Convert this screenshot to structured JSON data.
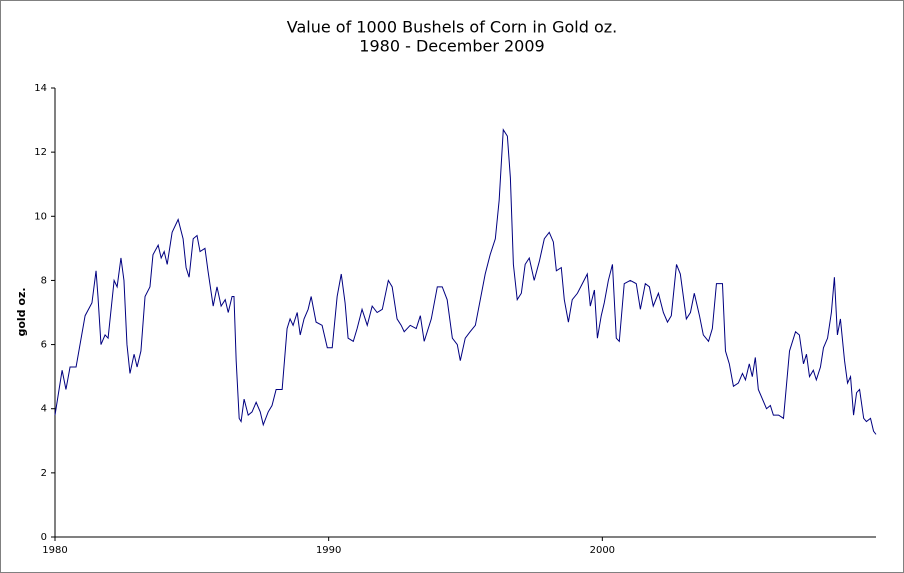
{
  "chart_data": {
    "type": "line",
    "title": "Value of 1000 Bushels of Corn in Gold oz.",
    "subtitle": "1980 - December 2009",
    "y_label": "gold oz.",
    "xlim": [
      1980,
      2010
    ],
    "xticks": [
      1980,
      1990,
      2000
    ],
    "ylim": [
      0,
      14
    ],
    "yticks": [
      0,
      2,
      4,
      6,
      8,
      10,
      12,
      14
    ],
    "grid": false,
    "series": [
      {
        "name": "Corn in Gold",
        "color": "#000080",
        "x": [
          1980.0,
          1980.26,
          1980.4,
          1980.55,
          1980.77,
          1981.1,
          1981.35,
          1981.5,
          1981.57,
          1981.68,
          1981.83,
          1981.94,
          1982.16,
          1982.27,
          1982.41,
          1982.52,
          1982.63,
          1982.74,
          1982.89,
          1983.0,
          1983.14,
          1983.29,
          1983.47,
          1983.58,
          1983.77,
          1983.88,
          1983.99,
          1984.1,
          1984.28,
          1984.5,
          1984.68,
          1984.79,
          1984.9,
          1985.05,
          1985.19,
          1985.3,
          1985.48,
          1985.59,
          1985.78,
          1985.92,
          1986.07,
          1986.22,
          1986.33,
          1986.47,
          1986.54,
          1986.62,
          1986.73,
          1986.8,
          1986.91,
          1987.06,
          1987.2,
          1987.35,
          1987.5,
          1987.61,
          1987.79,
          1987.93,
          1988.08,
          1988.3,
          1988.48,
          1988.59,
          1988.7,
          1988.85,
          1988.96,
          1989.1,
          1989.25,
          1989.36,
          1989.54,
          1989.76,
          1989.95,
          1990.13,
          1990.31,
          1990.46,
          1990.6,
          1990.71,
          1990.9,
          1991.04,
          1991.22,
          1991.41,
          1991.59,
          1991.77,
          1991.96,
          1992.18,
          1992.32,
          1992.5,
          1992.65,
          1992.76,
          1992.98,
          1993.2,
          1993.35,
          1993.49,
          1993.75,
          1993.97,
          1994.15,
          1994.33,
          1994.52,
          1994.7,
          1994.81,
          1994.99,
          1995.17,
          1995.36,
          1995.54,
          1995.72,
          1995.9,
          1996.09,
          1996.23,
          1996.38,
          1996.53,
          1996.64,
          1996.75,
          1996.89,
          1997.04,
          1997.18,
          1997.33,
          1997.51,
          1997.7,
          1997.88,
          1998.06,
          1998.21,
          1998.32,
          1998.5,
          1998.61,
          1998.76,
          1998.9,
          1999.09,
          1999.27,
          1999.45,
          1999.56,
          1999.71,
          1999.82,
          1999.96,
          2000.07,
          2000.22,
          2000.37,
          2000.51,
          2000.62,
          2000.8,
          2001.02,
          2001.24,
          2001.39,
          2001.57,
          2001.72,
          2001.86,
          2002.05,
          2002.23,
          2002.38,
          2002.52,
          2002.71,
          2002.85,
          2003.07,
          2003.22,
          2003.36,
          2003.55,
          2003.69,
          2003.88,
          2004.02,
          2004.17,
          2004.39,
          2004.5,
          2004.64,
          2004.79,
          2004.97,
          2005.12,
          2005.23,
          2005.37,
          2005.48,
          2005.59,
          2005.7,
          2005.85,
          2006.0,
          2006.14,
          2006.25,
          2006.44,
          2006.62,
          2006.84,
          2007.06,
          2007.2,
          2007.35,
          2007.46,
          2007.57,
          2007.71,
          2007.82,
          2007.97,
          2008.08,
          2008.23,
          2008.37,
          2008.48,
          2008.59,
          2008.7,
          2008.85,
          2008.96,
          2009.07,
          2009.18,
          2009.29,
          2009.4,
          2009.55,
          2009.65,
          2009.8,
          2009.91,
          2010.0
        ],
        "values": [
          3.8,
          5.2,
          4.6,
          5.3,
          5.3,
          6.9,
          7.3,
          8.3,
          7.5,
          6.0,
          6.3,
          6.2,
          8.0,
          7.8,
          8.7,
          8.0,
          6.0,
          5.1,
          5.7,
          5.3,
          5.8,
          7.5,
          7.8,
          8.8,
          9.1,
          8.7,
          8.9,
          8.5,
          9.5,
          9.9,
          9.3,
          8.4,
          8.1,
          9.3,
          9.4,
          8.9,
          9.0,
          8.3,
          7.2,
          7.8,
          7.2,
          7.4,
          7.0,
          7.5,
          7.5,
          5.5,
          3.7,
          3.6,
          4.3,
          3.8,
          3.9,
          4.2,
          3.9,
          3.5,
          3.9,
          4.1,
          4.6,
          4.6,
          6.5,
          6.8,
          6.6,
          7.0,
          6.3,
          6.8,
          7.1,
          7.5,
          6.7,
          6.6,
          5.9,
          5.9,
          7.5,
          8.2,
          7.3,
          6.2,
          6.1,
          6.5,
          7.1,
          6.6,
          7.2,
          7.0,
          7.1,
          8.0,
          7.8,
          6.8,
          6.6,
          6.4,
          6.6,
          6.5,
          6.9,
          6.1,
          6.8,
          7.8,
          7.8,
          7.4,
          6.2,
          6.0,
          5.5,
          6.2,
          6.4,
          6.6,
          7.4,
          8.2,
          8.8,
          9.3,
          10.5,
          12.7,
          12.5,
          11.2,
          8.5,
          7.4,
          7.6,
          8.5,
          8.7,
          8.0,
          8.6,
          9.3,
          9.5,
          9.2,
          8.3,
          8.4,
          7.4,
          6.7,
          7.4,
          7.6,
          7.9,
          8.2,
          7.2,
          7.7,
          6.2,
          6.9,
          7.3,
          8.0,
          8.5,
          6.2,
          6.1,
          7.9,
          8.0,
          7.9,
          7.1,
          7.9,
          7.8,
          7.2,
          7.6,
          7.0,
          6.7,
          6.9,
          8.5,
          8.2,
          6.8,
          7.0,
          7.6,
          6.9,
          6.3,
          6.1,
          6.5,
          7.9,
          7.9,
          5.8,
          5.4,
          4.7,
          4.8,
          5.1,
          4.9,
          5.4,
          5.0,
          5.6,
          4.6,
          4.3,
          4.0,
          4.1,
          3.8,
          3.8,
          3.7,
          5.8,
          6.4,
          6.3,
          5.4,
          5.7,
          5.0,
          5.2,
          4.9,
          5.3,
          5.9,
          6.2,
          7.0,
          8.1,
          6.3,
          6.8,
          5.5,
          4.8,
          5.0,
          3.8,
          4.5,
          4.6,
          3.7,
          3.6,
          3.7,
          3.3,
          3.2
        ]
      }
    ]
  }
}
